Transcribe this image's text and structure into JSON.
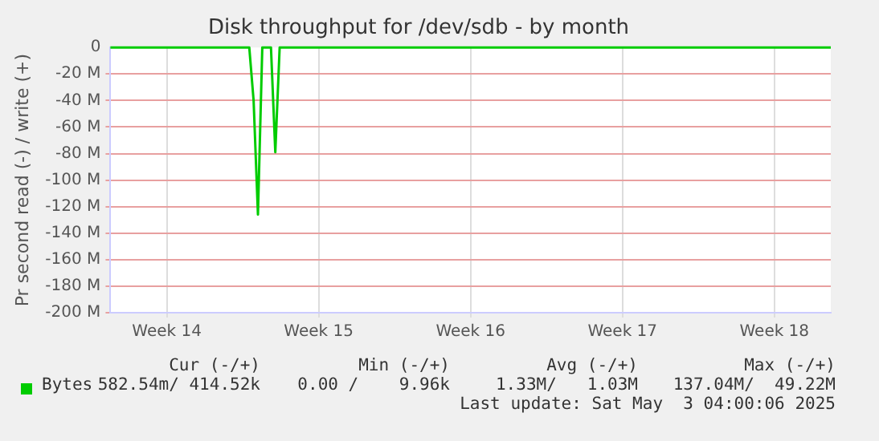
{
  "chart_data": {
    "type": "line",
    "title": "Disk throughput for /dev/sdb - by month",
    "ylabel": "Pr second read (-) / write (+)",
    "categories": [
      null,
      null,
      null,
      null,
      null,
      null,
      null,
      null,
      null,
      null,
      null,
      null,
      null,
      "Week 14",
      null,
      null,
      null,
      null,
      null,
      null,
      null,
      null,
      null,
      null,
      null,
      null,
      null,
      null,
      null,
      null,
      null,
      null,
      null,
      null,
      null,
      null,
      null,
      null,
      null,
      null,
      null,
      null,
      null,
      null,
      null,
      null,
      null,
      null,
      "Week 15",
      null,
      null,
      null,
      null,
      null,
      null,
      null,
      null,
      null,
      null,
      null,
      null,
      null,
      null,
      null,
      null,
      null,
      null,
      null,
      null,
      null,
      null,
      null,
      null,
      null,
      null,
      null,
      null,
      null,
      null,
      null,
      null,
      null,
      null,
      "Week 16",
      null,
      null,
      null,
      null,
      null,
      null,
      null,
      null,
      null,
      null,
      null,
      null,
      null,
      null,
      null,
      null,
      null,
      null,
      null,
      null,
      null,
      null,
      null,
      null,
      null,
      null,
      null,
      null,
      null,
      null,
      null,
      null,
      null,
      null,
      "Week 17",
      null,
      null,
      null,
      null,
      null,
      null,
      null,
      null,
      null,
      null,
      null,
      null,
      null,
      null,
      null,
      null,
      null,
      null,
      null,
      null,
      null,
      null,
      null,
      null,
      null,
      null,
      null,
      null,
      null,
      null,
      null,
      null,
      null,
      null,
      "Week 18",
      null,
      null,
      null,
      null,
      null,
      null,
      null,
      null,
      null,
      null,
      null,
      null,
      null
    ],
    "series": [
      {
        "name": "Bytes",
        "color": "#00cc00",
        "values": [
          0,
          0,
          0,
          0,
          0,
          0,
          0,
          0,
          0,
          0,
          0,
          0,
          0,
          0,
          0,
          0,
          0,
          0,
          0,
          0,
          0,
          0,
          0,
          0,
          0,
          0,
          0,
          0,
          0,
          0,
          0,
          0,
          0,
          -40,
          -126,
          0,
          0,
          0,
          -79,
          0,
          0,
          0,
          0,
          0,
          0,
          0,
          0,
          0,
          0,
          0,
          0,
          0,
          0,
          0,
          0,
          0,
          0,
          0,
          0,
          0,
          0,
          0,
          0,
          0,
          0,
          0,
          0,
          0,
          0,
          0,
          0,
          0,
          0,
          0,
          0,
          0,
          0,
          0,
          0,
          0,
          0,
          0,
          0,
          0,
          0,
          0,
          0,
          0,
          0,
          0,
          0,
          0,
          0,
          0,
          0,
          0,
          0,
          0,
          0,
          0,
          0,
          0,
          0,
          0,
          0,
          0,
          0,
          0,
          0,
          0,
          0,
          0,
          0,
          0,
          0,
          0,
          0,
          0,
          0,
          0,
          0,
          0,
          0,
          0,
          0,
          0,
          0,
          0,
          0,
          0,
          0,
          0,
          0,
          0,
          0,
          0,
          0,
          0,
          0,
          0,
          0,
          0,
          0,
          0,
          0,
          0,
          0,
          0,
          0,
          0,
          0,
          0,
          0,
          0,
          0,
          0,
          0,
          0,
          0,
          0,
          0,
          0,
          0,
          0,
          0,
          0,
          0
        ]
      }
    ],
    "ylim": [
      -200,
      0
    ],
    "yticks": [
      {
        "value": -200,
        "label": "-200 M"
      },
      {
        "value": -180,
        "label": "-180 M"
      },
      {
        "value": -160,
        "label": "-160 M"
      },
      {
        "value": -140,
        "label": "-140 M"
      },
      {
        "value": -120,
        "label": "-120 M"
      },
      {
        "value": -100,
        "label": "-100 M"
      },
      {
        "value": -80,
        "label": "-80 M"
      },
      {
        "value": -60,
        "label": "-60 M"
      },
      {
        "value": -40,
        "label": "-40 M"
      },
      {
        "value": -20,
        "label": "-20 M"
      },
      {
        "value": 0,
        "label": "0"
      }
    ],
    "grid": true,
    "legend": "bottom",
    "marker": "none",
    "line_style": "solid",
    "annotations": [
      "Cur (-/+)",
      "Min (-/+)",
      "Avg (-/+)",
      "Max (-/+)",
      "582.54m/ 414.52k",
      "0.00 /    9.96k",
      "1.33M/   1.03M",
      "137.04M/  49.22M",
      "Last update: Sat May  3 04:00:06 2025"
    ]
  }
}
